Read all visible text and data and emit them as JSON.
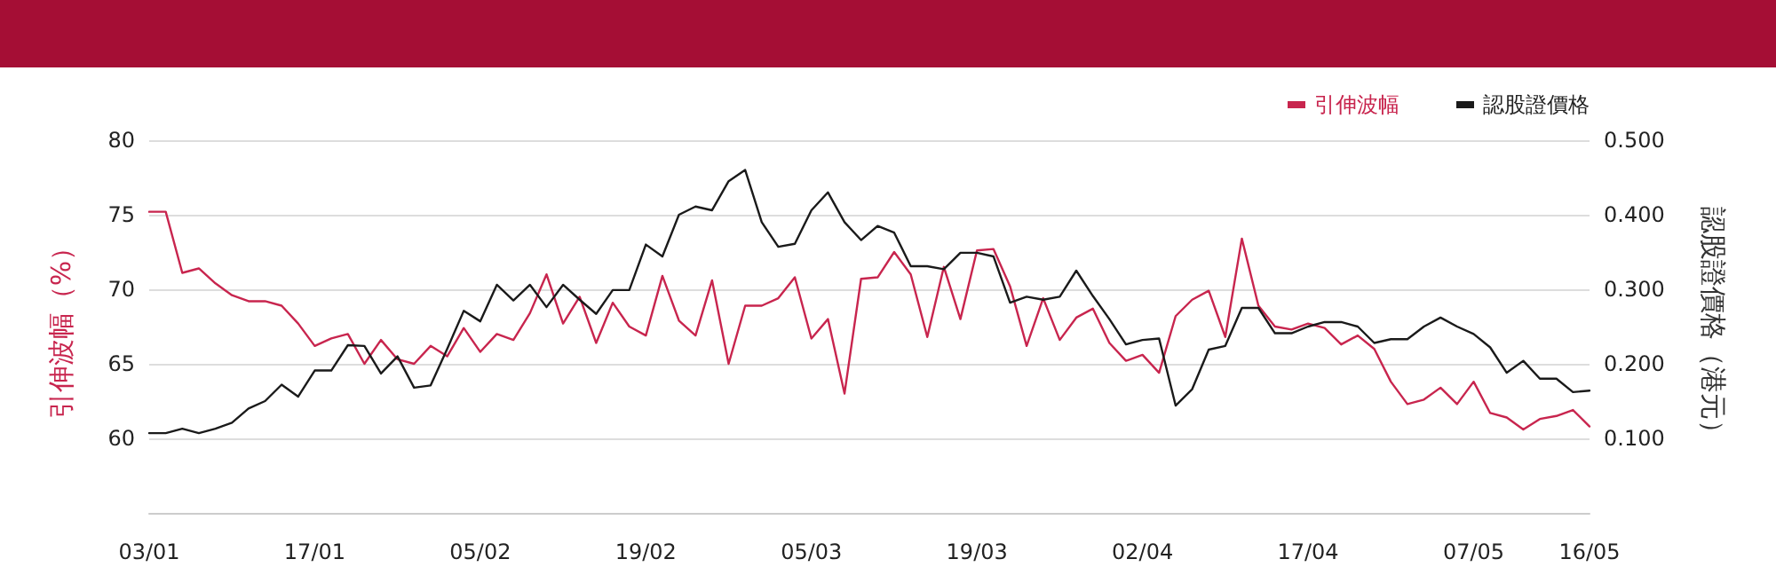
{
  "chart_data": {
    "type": "line",
    "ylabel": "引伸波幅（%）",
    "y2label": "認股證價格（港元）",
    "categories": [
      "03/01",
      null,
      null,
      null,
      null,
      null,
      null,
      null,
      null,
      null,
      "17/01",
      null,
      null,
      null,
      null,
      null,
      null,
      null,
      null,
      null,
      "05/02",
      null,
      null,
      null,
      null,
      null,
      null,
      null,
      null,
      null,
      "19/02",
      null,
      null,
      null,
      null,
      null,
      null,
      null,
      null,
      null,
      "05/03",
      null,
      null,
      null,
      null,
      null,
      null,
      null,
      null,
      null,
      "19/03",
      null,
      null,
      null,
      null,
      null,
      null,
      null,
      null,
      null,
      "02/04",
      null,
      null,
      null,
      null,
      null,
      null,
      null,
      null,
      null,
      "17/04",
      null,
      null,
      null,
      null,
      null,
      null,
      null,
      null,
      null,
      "07/05",
      null,
      null,
      null,
      null,
      null,
      null,
      "16/05"
    ],
    "series": [
      {
        "name": "引伸波幅",
        "color": "#c8254e",
        "values": [
          75.2,
          75.2,
          71.1,
          71.4,
          70.4,
          69.6,
          69.2,
          69.2,
          68.9,
          67.7,
          66.2,
          66.7,
          67.0,
          65.0,
          66.6,
          65.3,
          65.0,
          66.2,
          65.5,
          67.4,
          65.8,
          67.0,
          66.6,
          68.4,
          71.0,
          67.7,
          69.5,
          66.4,
          69.1,
          67.5,
          66.9,
          70.9,
          67.9,
          66.9,
          70.6,
          65.0,
          68.9,
          68.9,
          69.4,
          70.8,
          66.7,
          68.0,
          63.0,
          70.7,
          70.8,
          72.5,
          71.0,
          66.8,
          71.5,
          68.0,
          72.6,
          72.7,
          70.2,
          66.2,
          69.4,
          66.6,
          68.1,
          68.7,
          66.4,
          65.2,
          65.6,
          64.4,
          68.2,
          69.3,
          69.9,
          66.8,
          73.4,
          68.9,
          67.5,
          67.3,
          67.7,
          67.4,
          66.3,
          66.9,
          66.0,
          63.8,
          62.3,
          62.6,
          63.4,
          62.3,
          63.8,
          61.7,
          61.4,
          60.6,
          61.3,
          61.5,
          61.9,
          60.8
        ]
      },
      {
        "name": "認股證價格",
        "color": "#1a1a1a",
        "axis": "y2",
        "values": [
          0.107,
          0.107,
          0.113,
          0.107,
          0.113,
          0.121,
          0.14,
          0.15,
          0.172,
          0.156,
          0.191,
          0.191,
          0.225,
          0.224,
          0.187,
          0.21,
          0.168,
          0.171,
          0.22,
          0.271,
          0.257,
          0.306,
          0.285,
          0.306,
          0.276,
          0.306,
          0.286,
          0.267,
          0.299,
          0.299,
          0.36,
          0.344,
          0.4,
          0.411,
          0.406,
          0.445,
          0.46,
          0.39,
          0.357,
          0.361,
          0.406,
          0.43,
          0.39,
          0.366,
          0.385,
          0.376,
          0.331,
          0.331,
          0.327,
          0.349,
          0.349,
          0.344,
          0.282,
          0.29,
          0.286,
          0.29,
          0.325,
          0.291,
          0.26,
          0.226,
          0.232,
          0.234,
          0.144,
          0.166,
          0.219,
          0.224,
          0.275,
          0.275,
          0.241,
          0.241,
          0.25,
          0.256,
          0.256,
          0.25,
          0.228,
          0.233,
          0.233,
          0.25,
          0.262,
          0.25,
          0.24,
          0.222,
          0.188,
          0.204,
          0.18,
          0.18,
          0.162,
          0.164
        ]
      }
    ],
    "ylim": [
      55,
      80
    ],
    "yticks": [
      60,
      65,
      70,
      75,
      80
    ],
    "y2lim": [
      0,
      0.5
    ],
    "y2ticks": [
      {
        "value": 0.1,
        "label": "0.100"
      },
      {
        "value": 0.2,
        "label": "0.200"
      },
      {
        "value": 0.3,
        "label": "0.300"
      },
      {
        "value": 0.4,
        "label": "0.400"
      },
      {
        "value": 0.5,
        "label": "0.500"
      }
    ],
    "grid": "y",
    "legend": "top right",
    "marker": "none",
    "line_style": "solid"
  }
}
